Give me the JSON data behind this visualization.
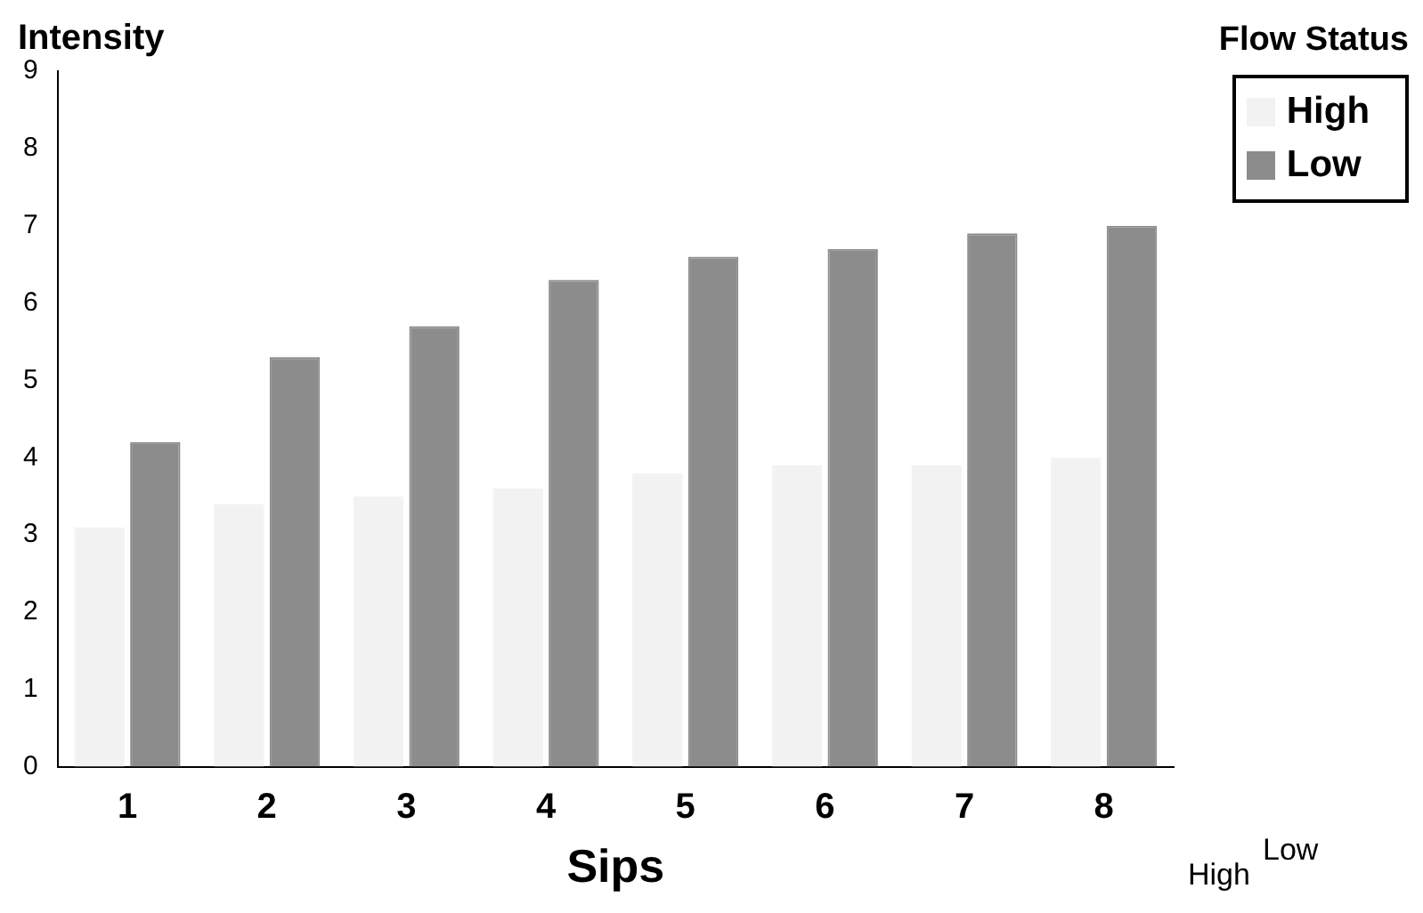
{
  "chart_data": {
    "type": "bar",
    "xlabel": "Sips",
    "ylabel": "Intensity",
    "legend_title": "Flow Status",
    "categories": [
      "1",
      "2",
      "3",
      "4",
      "5",
      "6",
      "7",
      "8"
    ],
    "series": [
      {
        "name": "High",
        "color": "#f2f2f2",
        "values": [
          3.1,
          3.4,
          3.5,
          3.6,
          3.8,
          3.9,
          3.9,
          4.0
        ]
      },
      {
        "name": "Low",
        "color": "#8c8c8c",
        "values": [
          4.2,
          5.3,
          5.7,
          6.3,
          6.6,
          6.7,
          6.9,
          7.0
        ]
      }
    ],
    "ylim": [
      0,
      9
    ],
    "yticks": [
      0,
      1,
      2,
      3,
      4,
      5,
      6,
      7,
      8,
      9
    ],
    "grid": false,
    "legend": "top right",
    "annotations": [
      "High",
      "Low"
    ]
  }
}
